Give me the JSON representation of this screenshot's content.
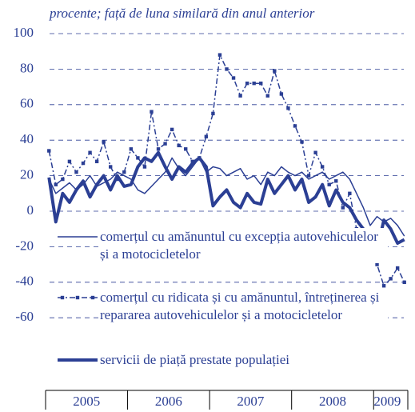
{
  "chart_data": {
    "type": "line",
    "title": "procente; față de luna similară din anul anterior",
    "categories": [
      null,
      null,
      null,
      null,
      null,
      null,
      "2005",
      null,
      null,
      null,
      null,
      null,
      null,
      null,
      null,
      null,
      null,
      null,
      "2006",
      null,
      null,
      null,
      null,
      null,
      null,
      null,
      null,
      null,
      null,
      null,
      "2007",
      null,
      null,
      null,
      null,
      null,
      null,
      null,
      null,
      null,
      null,
      null,
      "2008",
      null,
      null,
      null,
      null,
      null,
      null,
      null,
      "2009",
      null,
      null
    ],
    "series": [
      {
        "name": "comerțul cu amănuntul cu excepția autovehiculelor și a motocicletelor",
        "color": "#2b3f94",
        "style": "thin",
        "values": [
          18,
          10,
          13,
          16,
          12,
          15,
          20,
          14,
          16,
          18,
          22,
          20,
          18,
          12,
          10,
          14,
          18,
          22,
          30,
          24,
          20,
          25,
          30,
          22,
          25,
          24,
          20,
          22,
          24,
          18,
          20,
          15,
          22,
          20,
          25,
          22,
          20,
          22,
          18,
          20,
          22,
          18,
          20,
          22,
          18,
          10,
          2,
          -8,
          -3,
          -6,
          -4,
          -8,
          -14
        ]
      },
      {
        "name": "comerțul cu ridicata și cu amănuntul, întreținerea și repararea autovehiculelor și a motocicletelor",
        "color": "#2b3f94",
        "style": "dashdot",
        "values": [
          34,
          15,
          18,
          28,
          22,
          27,
          33,
          28,
          39,
          25,
          18,
          22,
          35,
          30,
          25,
          56,
          35,
          38,
          46,
          37,
          35,
          28,
          30,
          42,
          55,
          88,
          80,
          75,
          65,
          72,
          72,
          72,
          65,
          79,
          66,
          58,
          48,
          39,
          20,
          33,
          25,
          15,
          17,
          2,
          10,
          -10,
          -20,
          -25,
          -30,
          -42,
          -38,
          -32,
          -40
        ]
      },
      {
        "name": "servicii de piață prestate populației",
        "color": "#2b3f94",
        "style": "thick",
        "values": [
          19,
          -6,
          10,
          5,
          12,
          17,
          8,
          15,
          20,
          12,
          20,
          14,
          15,
          25,
          30,
          28,
          33,
          25,
          18,
          25,
          22,
          27,
          30,
          25,
          3,
          8,
          12,
          5,
          2,
          10,
          5,
          4,
          18,
          10,
          15,
          20,
          12,
          18,
          5,
          8,
          15,
          3,
          12,
          5,
          2,
          -5,
          -10,
          -15,
          -22,
          -5,
          -10,
          -18,
          -16
        ]
      }
    ],
    "ylim": [
      -100,
      100
    ],
    "yticks": [
      100,
      80,
      60,
      40,
      20,
      0,
      -20,
      -40,
      -60
    ],
    "grid": true
  }
}
